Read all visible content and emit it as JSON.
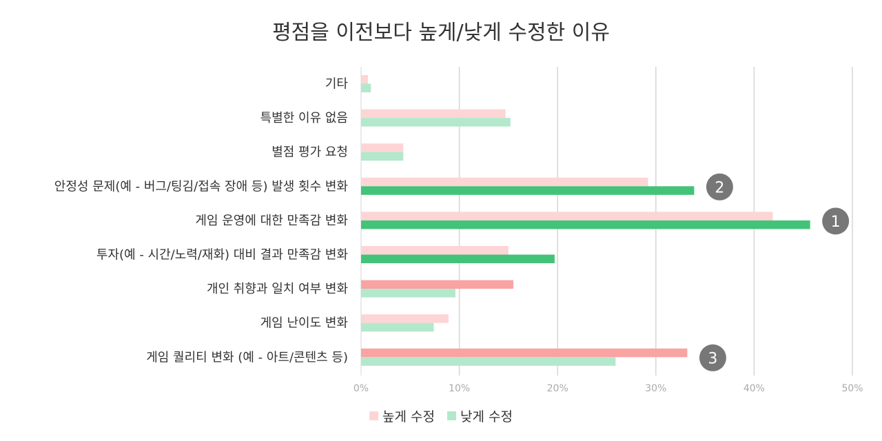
{
  "chart_data": {
    "type": "bar",
    "orientation": "horizontal",
    "title": "평점을 이전보다 높게/낮게 수정한 이유",
    "categories": [
      "기타",
      "특별한 이유 없음",
      "별점 평가 요청",
      "안정성 문제(예 - 버그/팅김/접속 장애 등) 발생 횟수 변화",
      "게임 운영에 대한 만족감 변화",
      "투자(예 - 시간/노력/재화) 대비 결과 만족감 변화",
      "개인 취향과 일치 여부 변화",
      "게임 난이도 변화",
      "게임 퀄리티 변화 (예 - 아트/콘텐츠 등)"
    ],
    "series": [
      {
        "name": "높게 수정",
        "values": [
          0.7,
          14.7,
          4.3,
          29.2,
          41.9,
          15.0,
          15.5,
          8.9,
          33.2
        ],
        "color": "#fdd5d5",
        "highlight_color": "#f9a3a3",
        "highlighted": [
          false,
          false,
          false,
          false,
          false,
          false,
          true,
          false,
          true
        ]
      },
      {
        "name": "낮게 수정",
        "values": [
          1.0,
          15.2,
          4.3,
          33.9,
          45.7,
          19.7,
          9.6,
          7.4,
          25.9
        ],
        "color": "#b3e8cc",
        "highlight_color": "#43c37a",
        "highlighted": [
          false,
          false,
          false,
          true,
          true,
          true,
          false,
          false,
          false
        ]
      }
    ],
    "xlim": [
      0,
      50
    ],
    "xticks": [
      0,
      10,
      20,
      30,
      40,
      50
    ],
    "xtick_labels": [
      "0%",
      "10%",
      "20%",
      "30%",
      "40%",
      "50%"
    ],
    "grid": "vertical",
    "legend_position": "bottom-center",
    "annotations": [
      {
        "label": "1",
        "category_index": 4
      },
      {
        "label": "2",
        "category_index": 3
      },
      {
        "label": "3",
        "category_index": 8
      }
    ],
    "annotation_color": "#777777"
  }
}
